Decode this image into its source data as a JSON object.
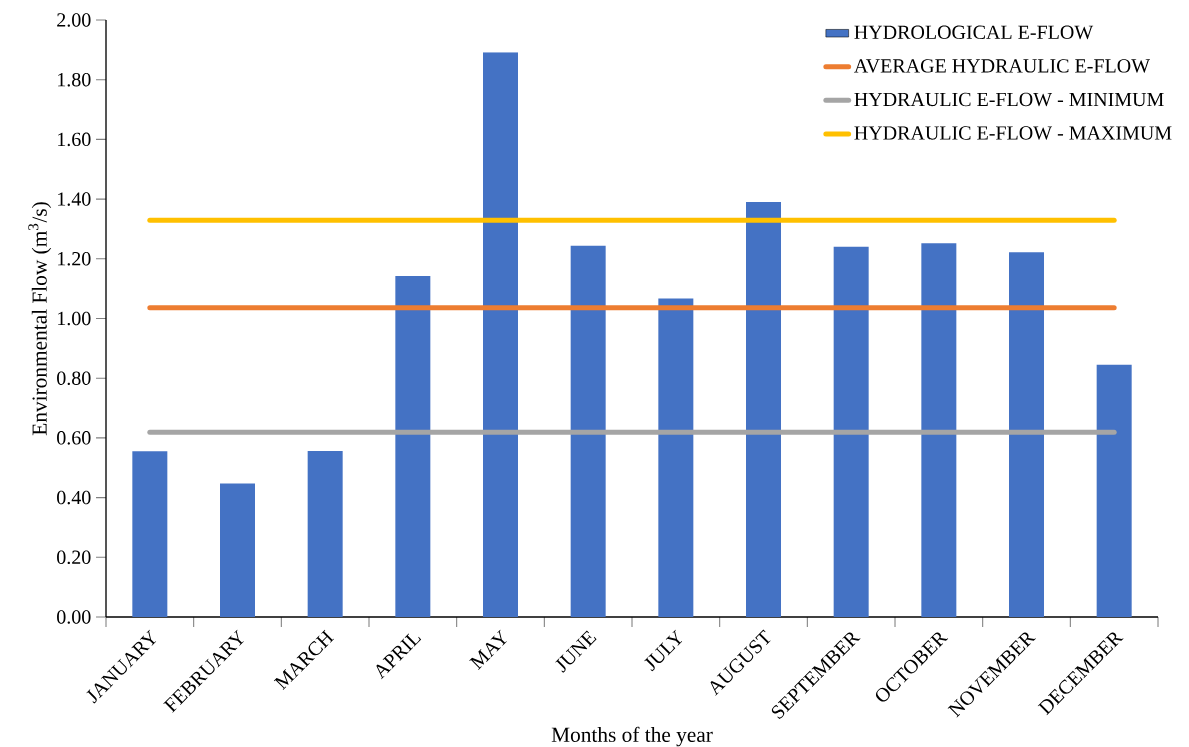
{
  "chart_data": {
    "type": "bar",
    "xlabel": "Months of the year",
    "ylabel": "Environmental Flow (m$^{3}$/s)",
    "categories": [
      "JANUARY",
      "FEBRUARY",
      "MARCH",
      "APRIL",
      "MAY",
      "JUNE",
      "JULY",
      "AUGUST",
      "SEPTEMBER",
      "OCTOBER",
      "NOVEMBER",
      "DECEMBER"
    ],
    "series": [
      {
        "name": "HYDROLOGICAL E-FLOW",
        "color": "#4472c4",
        "values": [
          0.555,
          0.447,
          0.556,
          1.142,
          1.892,
          1.244,
          1.067,
          1.39,
          1.24,
          1.252,
          1.222,
          0.845
        ]
      },
      {
        "name": "AVERAGE HYDRAULIC E-FLOW",
        "type": "line",
        "color": "#ed7d31",
        "values": [
          1.036,
          1.036,
          1.036,
          1.036,
          1.036,
          1.036,
          1.036,
          1.036,
          1.036,
          1.036,
          1.036,
          1.036
        ]
      },
      {
        "name": "HYDRAULIC E-FLOW - MINIMUM",
        "type": "line",
        "color": "#a5a5a5",
        "values": [
          0.619,
          0.619,
          0.619,
          0.619,
          0.619,
          0.619,
          0.619,
          0.619,
          0.619,
          0.619,
          0.619,
          0.619
        ]
      },
      {
        "name": "HYDRAULIC E-FLOW - MAXIMUM",
        "type": "line",
        "color": "#ffc000",
        "values": [
          1.329,
          1.329,
          1.329,
          1.329,
          1.329,
          1.329,
          1.329,
          1.329,
          1.329,
          1.329,
          1.329,
          1.329
        ]
      }
    ],
    "ylim": [
      0,
      2
    ],
    "yticks": [
      {
        "value": 0,
        "label": "0.00"
      },
      {
        "value": 0.2,
        "label": "0.20"
      },
      {
        "value": 0.4,
        "label": "0.40"
      },
      {
        "value": 0.6,
        "label": "0.60"
      },
      {
        "value": 0.8,
        "label": "0.80"
      },
      {
        "value": 1,
        "label": "1.00"
      },
      {
        "value": 1.2,
        "label": "1.20"
      },
      {
        "value": 1.4,
        "label": "1.40"
      },
      {
        "value": 1.6,
        "label": "1.60"
      },
      {
        "value": 1.8,
        "label": "1.80"
      },
      {
        "value": 2,
        "label": "2.00"
      }
    ],
    "legend": "top right",
    "grid": false
  }
}
